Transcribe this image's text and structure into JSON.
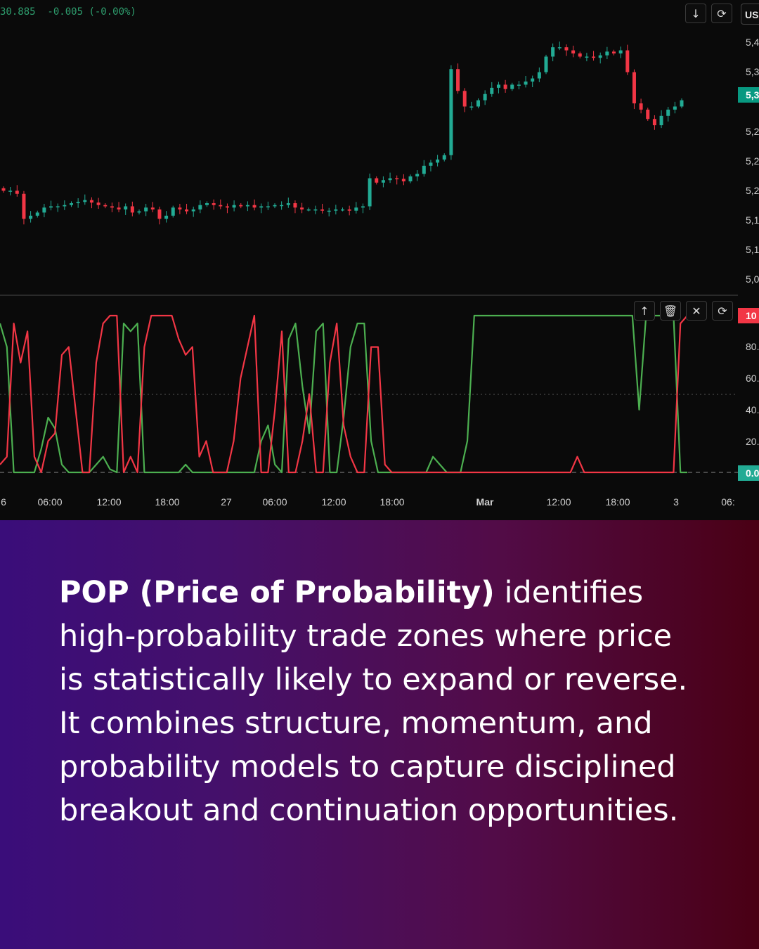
{
  "header": {
    "price_readout": "30.885  -0.005 (-0.00%)"
  },
  "toolbar_main": {
    "icons": [
      "arrow-down-icon",
      "refresh-icon"
    ],
    "currency_label": "USI"
  },
  "price_axis": {
    "labels": [
      "5,4",
      "5,3",
      "5,2",
      "5,2",
      "5,2",
      "5,1",
      "5,1",
      "5,0"
    ],
    "current_badge": "5,3",
    "badge_color": "#089981"
  },
  "indicator_toolbar": {
    "icons": [
      "arrow-up-icon",
      "trash-icon",
      "collapse-icon",
      "refresh-icon"
    ]
  },
  "indicator_axis": {
    "labels": [
      "80.",
      "60.",
      "40.",
      "20."
    ],
    "top_badge": "10",
    "top_badge_color": "#f23645",
    "bottom_badge": "0.0",
    "bottom_badge_color": "#22ab94"
  },
  "time_axis": [
    "6",
    "06:00",
    "12:00",
    "18:00",
    "27",
    "06:00",
    "12:00",
    "18:00",
    "Mar",
    "12:00",
    "18:00",
    "3",
    "06:"
  ],
  "colors": {
    "bull": "#22ab94",
    "bear": "#f23645",
    "green_line": "#4caf50",
    "red_line": "#f23645"
  },
  "chart_data": [
    {
      "type": "candlestick",
      "description_series": "price",
      "close": [
        5.195,
        5.195,
        5.19,
        5.15,
        5.155,
        5.16,
        5.168,
        5.17,
        5.17,
        5.172,
        5.175,
        5.177,
        5.18,
        5.176,
        5.172,
        5.17,
        5.168,
        5.165,
        5.17,
        5.16,
        5.162,
        5.168,
        5.165,
        5.15,
        5.155,
        5.168,
        5.165,
        5.162,
        5.165,
        5.172,
        5.175,
        5.172,
        5.17,
        5.168,
        5.172,
        5.17,
        5.172,
        5.168,
        5.17,
        5.17,
        5.172,
        5.172,
        5.175,
        5.168,
        5.165,
        5.165,
        5.165,
        5.163,
        5.163,
        5.165,
        5.165,
        5.163,
        5.168,
        5.17,
        5.215,
        5.208,
        5.212,
        5.215,
        5.214,
        5.21,
        5.218,
        5.222,
        5.235,
        5.24,
        5.245,
        5.252,
        5.39,
        5.355,
        5.33,
        5.33,
        5.34,
        5.35,
        5.36,
        5.365,
        5.358,
        5.365,
        5.365,
        5.37,
        5.375,
        5.385,
        5.41,
        5.425,
        5.425,
        5.42,
        5.415,
        5.41,
        5.41,
        5.408,
        5.412,
        5.418,
        5.415,
        5.42,
        5.385,
        5.335,
        5.325,
        5.31,
        5.3,
        5.315,
        5.325,
        5.33,
        5.34
      ]
    },
    {
      "type": "line",
      "description_series": "indicator",
      "ylim": [
        0,
        100
      ],
      "x": [
        0,
        1,
        2,
        3,
        4,
        5,
        6,
        7,
        8,
        9,
        10,
        11,
        12,
        13,
        14,
        15,
        16,
        17,
        18,
        19,
        20,
        21,
        22,
        23,
        24,
        25,
        26,
        27,
        28,
        29,
        30,
        31,
        32,
        33,
        34,
        35,
        36,
        37,
        38,
        39,
        40,
        41,
        42,
        43,
        44,
        45,
        46,
        47,
        48,
        49,
        50,
        51,
        52,
        53,
        54,
        55,
        56,
        57,
        58,
        59,
        60,
        61,
        62,
        63,
        64,
        65,
        66,
        67,
        68,
        69,
        70,
        71,
        72,
        73,
        74,
        75,
        76,
        77,
        78,
        79,
        80,
        81,
        82,
        83,
        84,
        85,
        86,
        87,
        88,
        89,
        90,
        91,
        92,
        93,
        94,
        95,
        96,
        97,
        98,
        99,
        100
      ],
      "series": [
        {
          "values": [
            95,
            80,
            0,
            0,
            0,
            0,
            15,
            35,
            28,
            5,
            0,
            0,
            0,
            0,
            5,
            10,
            2,
            0,
            95,
            90,
            95,
            0,
            0,
            0,
            0,
            0,
            0,
            5,
            0,
            0,
            0,
            0,
            0,
            0,
            0,
            0,
            0,
            0,
            20,
            30,
            5,
            0,
            85,
            95,
            55,
            25,
            90,
            95,
            0,
            0,
            35,
            80,
            95,
            95,
            20,
            0,
            0,
            0,
            0,
            0,
            0,
            0,
            0,
            10,
            5,
            0,
            0,
            0,
            20,
            100,
            100,
            100,
            100,
            100,
            100,
            100,
            100,
            100,
            100,
            100,
            100,
            100,
            100,
            100,
            100,
            100,
            100,
            100,
            100,
            100,
            100,
            100,
            100,
            40,
            100,
            100,
            100,
            100,
            100,
            0,
            0
          ]
        },
        {
          "values": [
            5,
            10,
            95,
            70,
            90,
            10,
            0,
            20,
            25,
            75,
            80,
            40,
            0,
            0,
            70,
            95,
            100,
            100,
            0,
            10,
            0,
            80,
            100,
            100,
            100,
            100,
            85,
            75,
            80,
            10,
            20,
            0,
            0,
            0,
            20,
            60,
            80,
            100,
            0,
            0,
            40,
            90,
            0,
            0,
            20,
            50,
            0,
            0,
            70,
            95,
            30,
            10,
            0,
            0,
            80,
            80,
            5,
            0,
            0,
            0,
            0,
            0,
            0,
            0,
            0,
            0,
            0,
            0,
            0,
            0,
            0,
            0,
            0,
            0,
            0,
            0,
            0,
            0,
            0,
            0,
            0,
            0,
            0,
            0,
            10,
            0,
            0,
            0,
            0,
            0,
            0,
            0,
            0,
            0,
            0,
            0,
            0,
            0,
            0,
            95,
            100
          ]
        }
      ]
    }
  ],
  "caption": {
    "highlight": "POP (Price of Probability)",
    "text": " identifies high-probability trade zones where price is statistically likely to expand or reverse.  It combines structure, momentum, and probability models to capture disciplined breakout and continuation opportunities."
  }
}
